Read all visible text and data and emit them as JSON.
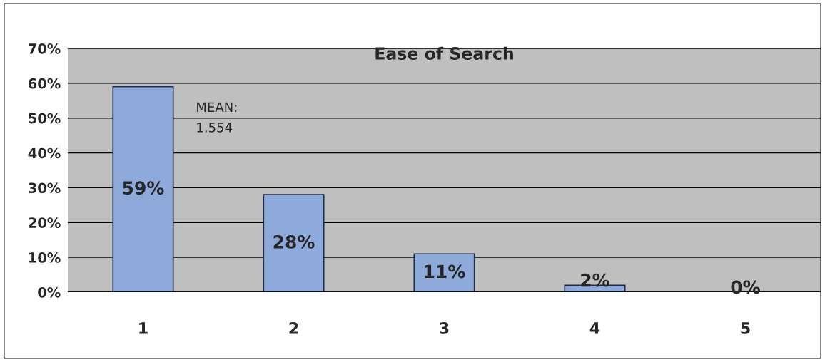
{
  "chart_data": {
    "type": "bar",
    "title": "Ease of Search",
    "categories": [
      "1",
      "2",
      "3",
      "4",
      "5"
    ],
    "values": [
      59,
      28,
      11,
      2,
      0
    ],
    "value_labels": [
      "59%",
      "28%",
      "11%",
      "2%",
      "0%"
    ],
    "color": "#8eaadb",
    "ylim": [
      0,
      70
    ],
    "yticks": [
      {
        "value": 0,
        "label": "0%"
      },
      {
        "value": 10,
        "label": "10%"
      },
      {
        "value": 20,
        "label": "20%"
      },
      {
        "value": 30,
        "label": "30%"
      },
      {
        "value": 40,
        "label": "40%"
      },
      {
        "value": 50,
        "label": "50%"
      },
      {
        "value": 60,
        "label": "60%"
      },
      {
        "value": 70,
        "label": "70%"
      }
    ],
    "grid": "y",
    "annotations": [
      "MEAN:\n1.554"
    ]
  }
}
